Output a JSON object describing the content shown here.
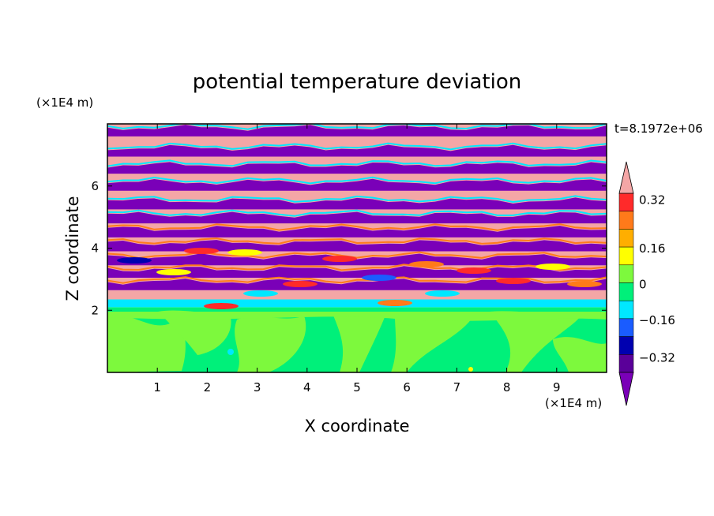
{
  "chart_data": {
    "type": "heatmap",
    "title": "potential temperature deviation",
    "xlabel": "X coordinate",
    "ylabel": "Z coordinate",
    "x_unit": "(×1E4 m)",
    "y_unit": "(×1E4 m)",
    "time_label": "t=8.1972e+06",
    "xlim": [
      0,
      10
    ],
    "ylim": [
      0,
      8
    ],
    "x_ticks": [
      1,
      2,
      3,
      4,
      5,
      6,
      7,
      8,
      9
    ],
    "y_ticks": [
      2,
      4,
      6
    ],
    "colorbar": {
      "levels": [
        -0.4,
        -0.32,
        -0.24,
        -0.16,
        -0.08,
        0,
        0.08,
        0.16,
        0.24,
        0.32,
        0.4
      ],
      "tick_labels": [
        "0.32",
        "0.16",
        "0",
        "−0.16",
        "−0.32"
      ],
      "tick_values": [
        0.32,
        0.16,
        0,
        -0.16,
        -0.32
      ],
      "colors_high_to_low": [
        "#f4a6a6",
        "#ff2a2a",
        "#ff7a1a",
        "#ffae00",
        "#ffff00",
        "#7df93d",
        "#00f07a",
        "#00e8ff",
        "#1a5cff",
        "#0000b0",
        "#5a0099",
        "#7a00b8"
      ],
      "extend": "both"
    },
    "regions": [
      {
        "z_range": [
          0,
          2.1
        ],
        "dominant": 0,
        "description_values": [
          0,
          0.08
        ]
      },
      {
        "z_range": [
          2.1,
          8
        ],
        "dominant": "alternating",
        "description_values": [
          0.4,
          -0.4
        ]
      }
    ]
  }
}
